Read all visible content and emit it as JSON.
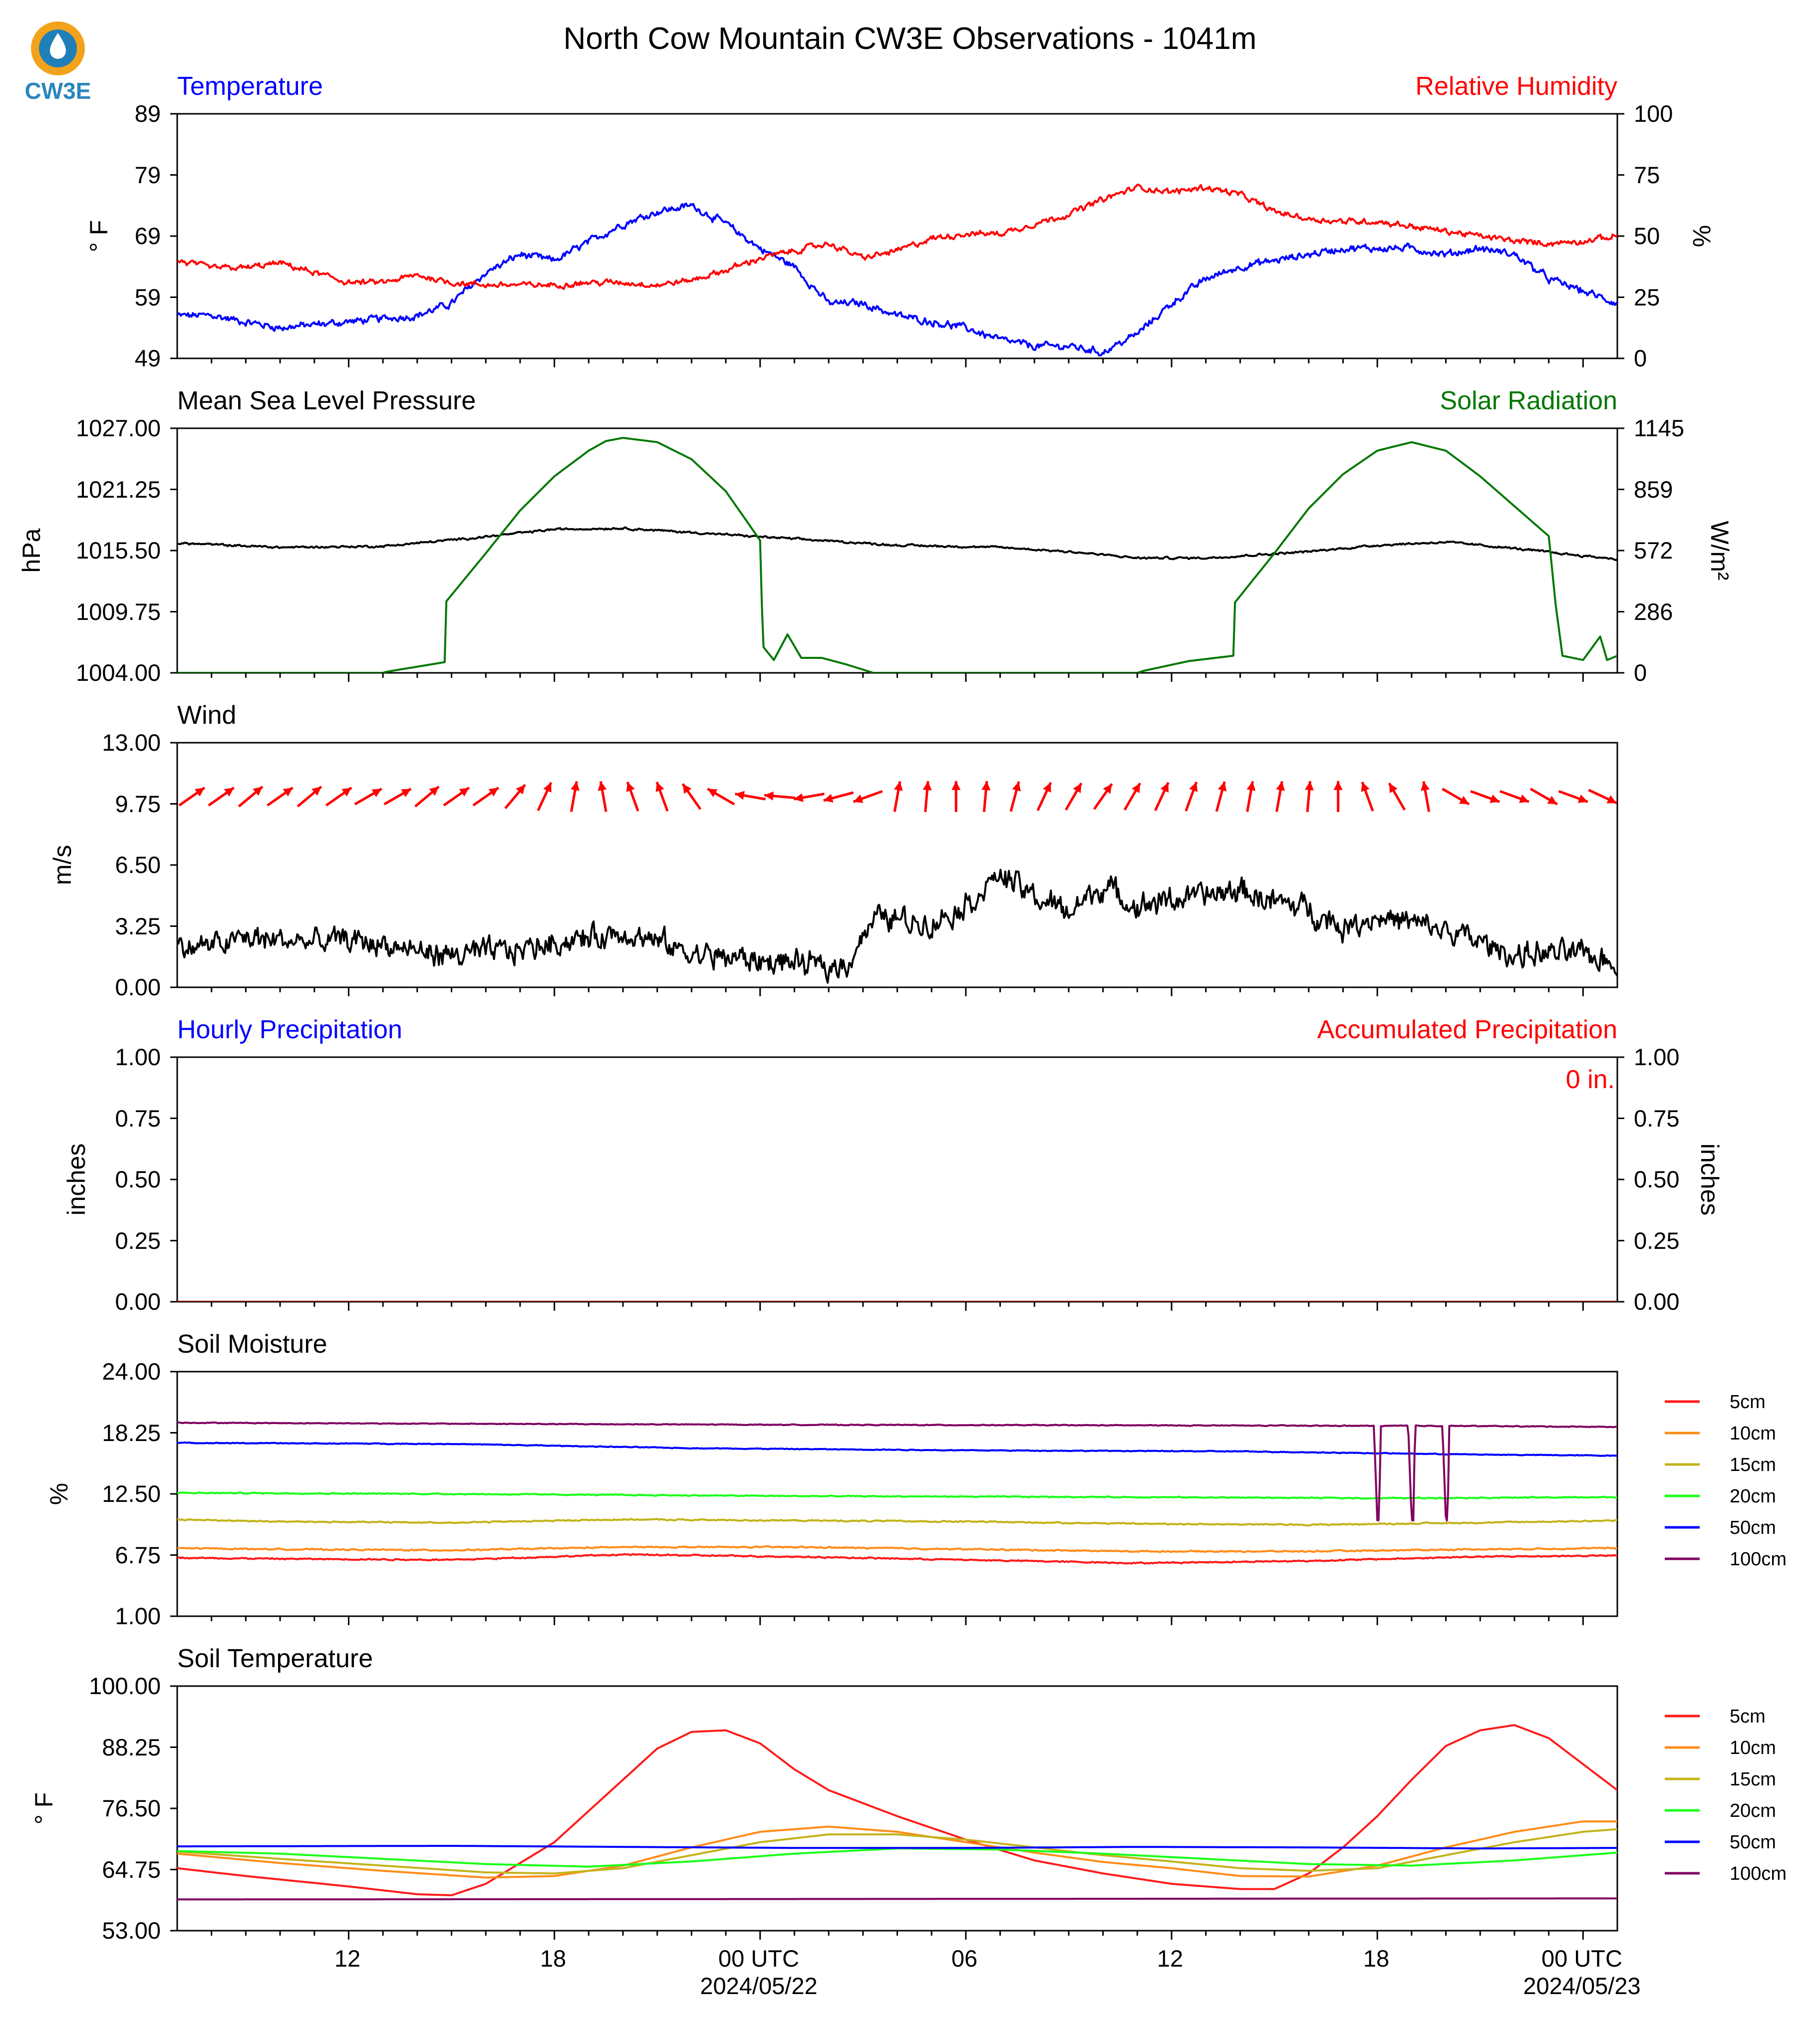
{
  "figure": {
    "title": "North Cow Mountain CW3E Observations - 1041m",
    "logo_text": "CW3E"
  },
  "time_axis": {
    "hours_start": 7,
    "hours_end": 49,
    "tick_hours": [
      12,
      18,
      24,
      30,
      36,
      42,
      48
    ],
    "tick_labels": [
      "12",
      "18",
      "00 UTC",
      "06",
      "12",
      "18",
      "00 UTC"
    ],
    "date_labels": [
      "2024/05/22",
      "",
      "",
      "",
      "",
      "",
      "2024/05/23"
    ]
  },
  "chart_data": [
    {
      "id": "temp_rh",
      "type": "line",
      "title_left": "Temperature",
      "title_right": "Relative Humidity",
      "ylabel": "° F",
      "ylabel2": "%",
      "ylim": [
        49,
        89
      ],
      "ylim2": [
        0,
        100
      ],
      "yticks": [
        "89",
        "79",
        "69",
        "59",
        "49"
      ],
      "yticks2": [
        "100",
        "75",
        "50",
        "25",
        "0"
      ],
      "series": [
        {
          "name": "Temperature",
          "axis": "left",
          "color": "#0000ff",
          "noise": 0.5,
          "x": [
            7,
            8,
            10,
            12,
            14,
            15,
            16,
            17,
            18,
            19,
            20,
            21,
            22,
            23,
            24,
            25,
            26,
            27,
            28,
            29,
            30,
            31,
            32,
            33,
            34,
            35,
            36,
            36.5,
            37,
            38,
            39,
            40,
            41,
            42,
            43,
            44,
            45,
            46,
            47,
            48,
            49
          ],
          "y": [
            56,
            56,
            54,
            55,
            56,
            58,
            63,
            66,
            65,
            68,
            71,
            73,
            74,
            71,
            67,
            64,
            58,
            58,
            56,
            55,
            54,
            52,
            51,
            51,
            50,
            53,
            58,
            60,
            62,
            64,
            65,
            66,
            67,
            67,
            67,
            66,
            67,
            66,
            62,
            60,
            58
          ]
        },
        {
          "name": "Relative Humidity",
          "axis": "right",
          "color": "#ff0000",
          "noise": 1.0,
          "x": [
            7,
            8,
            9,
            10,
            11,
            12,
            13,
            14,
            15,
            16,
            17,
            18,
            19,
            20,
            21,
            22,
            23,
            24,
            25,
            26,
            27,
            28,
            29,
            30,
            31,
            32,
            33,
            34,
            35,
            36,
            37,
            38,
            39,
            40,
            41,
            42,
            43,
            44,
            45,
            46,
            47,
            48,
            49
          ],
          "y": [
            40,
            37,
            37,
            39,
            35,
            31,
            31,
            34,
            31,
            30,
            30,
            30,
            31,
            31,
            30,
            32,
            36,
            41,
            44,
            47,
            41,
            44,
            49,
            51,
            51,
            55,
            59,
            65,
            70,
            68,
            70,
            67,
            60,
            57,
            56,
            56,
            54,
            52,
            50,
            48,
            47,
            48,
            50
          ]
        }
      ]
    },
    {
      "id": "pressure_solar",
      "type": "line",
      "title_left": "Mean Sea Level Pressure",
      "title_right": "Solar Radiation",
      "ylabel": "hPa",
      "ylabel2": "W/m²",
      "ylim": [
        1004,
        1027
      ],
      "ylim2": [
        0,
        1145
      ],
      "yticks": [
        "1027.00",
        "1021.25",
        "1015.50",
        "1009.75",
        "1004.00"
      ],
      "yticks2": [
        "1145",
        "859",
        "572",
        "286",
        "0"
      ],
      "series": [
        {
          "name": "Mean Sea Level Pressure",
          "axis": "left",
          "color": "#000000",
          "noise": 0.08,
          "x": [
            7,
            10,
            13,
            16,
            18,
            20,
            22,
            25,
            28,
            31,
            33,
            35,
            37,
            40,
            42,
            44,
            46,
            48,
            49
          ],
          "y": [
            1016.2,
            1015.8,
            1015.9,
            1016.8,
            1017.5,
            1017.6,
            1017.2,
            1016.6,
            1016.0,
            1015.8,
            1015.4,
            1014.8,
            1014.8,
            1015.4,
            1016.0,
            1016.3,
            1015.7,
            1015.0,
            1014.7
          ]
        },
        {
          "name": "Solar Radiation",
          "axis": "right",
          "color": "#007700",
          "noise": 0,
          "x": [
            7,
            13,
            13.1,
            14.8,
            14.85,
            16,
            17,
            18,
            19,
            19.5,
            20,
            21,
            22,
            23,
            24,
            24.05,
            24.1,
            24.4,
            24.8,
            25.2,
            25.8,
            26.5,
            27.3,
            35,
            35.2,
            36.5,
            37.8,
            37.85,
            39,
            40,
            41,
            42,
            43,
            44,
            45,
            46,
            47,
            47.2,
            47.4,
            48,
            48.5,
            48.7,
            49
          ],
          "y": [
            0,
            0,
            5,
            50,
            335,
            560,
            760,
            920,
            1040,
            1085,
            1100,
            1080,
            1000,
            850,
            620,
            320,
            120,
            60,
            180,
            70,
            70,
            40,
            0,
            0,
            10,
            55,
            80,
            330,
            560,
            770,
            930,
            1040,
            1080,
            1040,
            920,
            780,
            640,
            320,
            80,
            60,
            170,
            60,
            80
          ]
        }
      ]
    },
    {
      "id": "wind",
      "type": "line",
      "title_left": "Wind",
      "ylabel": "m/s",
      "ylim": [
        0,
        13
      ],
      "yticks": [
        "13.00",
        "9.75",
        "6.50",
        "3.25",
        "0.00"
      ],
      "series": [
        {
          "name": "Wind Speed",
          "axis": "left",
          "color": "#000000",
          "noise": 0.55,
          "x": [
            7,
            8,
            9,
            10,
            11,
            12,
            13,
            14,
            15,
            16,
            17,
            18,
            19,
            20,
            21,
            22,
            23,
            24,
            25,
            26,
            26.5,
            27,
            27.5,
            28,
            29,
            30,
            31,
            31.5,
            32,
            33,
            34,
            35,
            36,
            37,
            38,
            39,
            40,
            41,
            42,
            43,
            44,
            45,
            46,
            47,
            48,
            49
          ],
          "y": [
            2.1,
            2.2,
            2.6,
            2.5,
            2.4,
            2.5,
            2.3,
            1.9,
            1.7,
            1.8,
            2.0,
            2.4,
            2.6,
            3.0,
            2.4,
            1.8,
            1.6,
            1.4,
            1.3,
            1.0,
            1.2,
            2.8,
            3.8,
            3.6,
            3.4,
            4.4,
            6.0,
            5.4,
            4.8,
            4.0,
            5.4,
            4.3,
            4.7,
            4.8,
            5.2,
            4.5,
            4.2,
            3.2,
            3.8,
            3.4,
            3.0,
            2.4,
            1.7,
            1.8,
            1.7,
            1.3
          ]
        }
      ],
      "barb_dirs": [
        235,
        235,
        230,
        235,
        230,
        235,
        240,
        240,
        230,
        235,
        235,
        220,
        205,
        190,
        170,
        160,
        160,
        145,
        120,
        100,
        95,
        80,
        75,
        70,
        190,
        185,
        180,
        185,
        195,
        205,
        210,
        215,
        210,
        205,
        200,
        195,
        190,
        190,
        185,
        180,
        160,
        150,
        170,
        300,
        290,
        290,
        300,
        290,
        295
      ]
    },
    {
      "id": "precip",
      "type": "line",
      "title_left": "Hourly Precipitation",
      "title_right": "Accumulated Precipitation",
      "ylabel": "inches",
      "ylabel2": "inches",
      "ylim": [
        0,
        1
      ],
      "ylim2": [
        0,
        1
      ],
      "yticks": [
        "1.00",
        "0.75",
        "0.50",
        "0.25",
        "0.00"
      ],
      "yticks2": [
        "1.00",
        "0.75",
        "0.50",
        "0.25",
        "0.00"
      ],
      "annotation": "0 in.",
      "series": [
        {
          "name": "Hourly Precipitation",
          "axis": "left",
          "color": "#0000ff",
          "noise": 0,
          "x": [
            7,
            49
          ],
          "y": [
            0,
            0
          ]
        },
        {
          "name": "Accumulated Precipitation",
          "axis": "right",
          "color": "#8b0000",
          "noise": 0,
          "x": [
            7,
            49
          ],
          "y": [
            0,
            0
          ]
        }
      ]
    },
    {
      "id": "soil_moisture",
      "type": "line",
      "title_left": "Soil Moisture",
      "ylabel": "%",
      "ylim": [
        1,
        24
      ],
      "yticks": [
        "24.00",
        "18.25",
        "12.50",
        "6.75",
        "1.00"
      ],
      "legend_labels": [
        "5cm",
        "10cm",
        "15cm",
        "20cm",
        "50cm",
        "100cm"
      ],
      "legend_colors": [
        "#ff1a1a",
        "#ff8c1a",
        "#c2b31a",
        "#1aff1a",
        "#0000ff",
        "#800060"
      ],
      "series": [
        {
          "name": "5cm",
          "axis": "left",
          "color": "#ff1a1a",
          "noise": 0.05,
          "x": [
            7,
            10,
            15,
            20,
            25,
            30,
            35,
            40,
            45,
            49
          ],
          "y": [
            6.5,
            6.4,
            6.3,
            6.8,
            6.6,
            6.3,
            6.0,
            6.2,
            6.6,
            6.7
          ]
        },
        {
          "name": "10cm",
          "axis": "left",
          "color": "#ff8c1a",
          "noise": 0.05,
          "x": [
            7,
            10,
            15,
            20,
            25,
            30,
            35,
            40,
            45,
            49
          ],
          "y": [
            7.4,
            7.3,
            7.2,
            7.5,
            7.5,
            7.3,
            7.1,
            7.1,
            7.3,
            7.4
          ]
        },
        {
          "name": "15cm",
          "axis": "left",
          "color": "#c2b31a",
          "noise": 0.05,
          "x": [
            7,
            10,
            15,
            20,
            25,
            30,
            35,
            40,
            45,
            49
          ],
          "y": [
            10.1,
            9.9,
            9.8,
            10.1,
            10.0,
            9.9,
            9.7,
            9.6,
            9.8,
            10.0
          ]
        },
        {
          "name": "20cm",
          "axis": "left",
          "color": "#1aff1a",
          "noise": 0.04,
          "x": [
            7,
            15,
            25,
            35,
            42,
            49
          ],
          "y": [
            12.6,
            12.5,
            12.3,
            12.2,
            12.1,
            12.2
          ]
        },
        {
          "name": "50cm",
          "axis": "left",
          "color": "#0000ff",
          "noise": 0.03,
          "x": [
            7,
            15,
            22,
            30,
            38,
            45,
            49
          ],
          "y": [
            17.3,
            17.2,
            16.8,
            16.6,
            16.5,
            16.2,
            16.1
          ]
        },
        {
          "name": "100cm",
          "axis": "left",
          "color": "#800060",
          "noise": 0.03,
          "x": [
            7,
            15,
            25,
            35,
            41.9,
            42.0,
            42.05,
            42.1,
            42.9,
            43.0,
            43.05,
            43.1,
            43.9,
            44.0,
            44.05,
            44.1,
            49
          ],
          "y": [
            19.2,
            19.1,
            19.0,
            18.95,
            18.9,
            10.0,
            10.0,
            18.9,
            18.9,
            10.0,
            10.0,
            18.9,
            18.9,
            10.0,
            10.0,
            18.9,
            18.8
          ]
        }
      ]
    },
    {
      "id": "soil_temperature",
      "type": "line",
      "title_left": "Soil Temperature",
      "ylabel": "° F",
      "ylim": [
        53,
        100
      ],
      "yticks": [
        "100.00",
        "88.25",
        "76.50",
        "64.75",
        "53.00"
      ],
      "legend_labels": [
        "5cm",
        "10cm",
        "15cm",
        "20cm",
        "50cm",
        "100cm"
      ],
      "legend_colors": [
        "#ff1a1a",
        "#ff8c1a",
        "#c2b31a",
        "#1aff1a",
        "#0000ff",
        "#800060"
      ],
      "series": [
        {
          "name": "5cm",
          "axis": "left",
          "color": "#ff1a1a",
          "noise": 0,
          "x": [
            7,
            9,
            12,
            14,
            15,
            16,
            17,
            18,
            19,
            20,
            21,
            22,
            23,
            24,
            25,
            26,
            28,
            30,
            32,
            34,
            36,
            38,
            39,
            40,
            41,
            42,
            43,
            44,
            45,
            46,
            47,
            48,
            49
          ],
          "y": [
            65.0,
            63.5,
            61.5,
            60.0,
            59.8,
            62,
            66,
            70,
            76,
            82,
            88,
            91.2,
            91.5,
            89,
            84,
            80,
            75,
            70.5,
            66.5,
            64,
            62,
            61,
            61,
            64,
            69,
            75,
            82,
            88.5,
            91.5,
            92.5,
            90,
            85,
            80
          ]
        },
        {
          "name": "10cm",
          "axis": "left",
          "color": "#ff8c1a",
          "noise": 0,
          "x": [
            7,
            10,
            13,
            16,
            18,
            20,
            22,
            24,
            26,
            28,
            30,
            32,
            34,
            36,
            38,
            40,
            42,
            44,
            46,
            48,
            49
          ],
          "y": [
            67.8,
            66,
            64.5,
            63.2,
            63.5,
            65.5,
            69,
            72,
            73,
            72,
            70,
            68,
            66.2,
            65,
            63.5,
            63.4,
            65.5,
            69,
            72,
            74,
            74
          ]
        },
        {
          "name": "15cm",
          "axis": "left",
          "color": "#c2b31a",
          "noise": 0,
          "x": [
            7,
            10,
            13,
            16,
            18,
            20,
            22,
            24,
            26,
            28,
            30,
            32,
            34,
            36,
            38,
            40,
            42,
            44,
            46,
            48,
            49
          ],
          "y": [
            68.2,
            66.8,
            65.5,
            64.2,
            64.0,
            65.0,
            67.5,
            70,
            71.5,
            71.5,
            70.5,
            69,
            67.5,
            66.3,
            65,
            64.5,
            65.0,
            67.5,
            70,
            72,
            72.5
          ]
        },
        {
          "name": "20cm",
          "axis": "left",
          "color": "#1aff1a",
          "noise": 0,
          "x": [
            7,
            10,
            13,
            16,
            19,
            22,
            25,
            28,
            31,
            34,
            37,
            40,
            43,
            46,
            49
          ],
          "y": [
            68.3,
            67.8,
            66.8,
            65.8,
            65.3,
            66.3,
            67.8,
            68.8,
            68.6,
            67.8,
            66.8,
            65.8,
            65.5,
            66.5,
            68
          ]
        },
        {
          "name": "50cm",
          "axis": "left",
          "color": "#0000ff",
          "noise": 0,
          "x": [
            7,
            15,
            20,
            25,
            30,
            35,
            40,
            45,
            49
          ],
          "y": [
            69.2,
            69.3,
            69.1,
            68.9,
            68.9,
            69.1,
            69.0,
            68.8,
            68.9
          ]
        },
        {
          "name": "100cm",
          "axis": "left",
          "color": "#800060",
          "noise": 0,
          "x": [
            7,
            49
          ],
          "y": [
            59.0,
            59.2
          ]
        }
      ]
    }
  ]
}
